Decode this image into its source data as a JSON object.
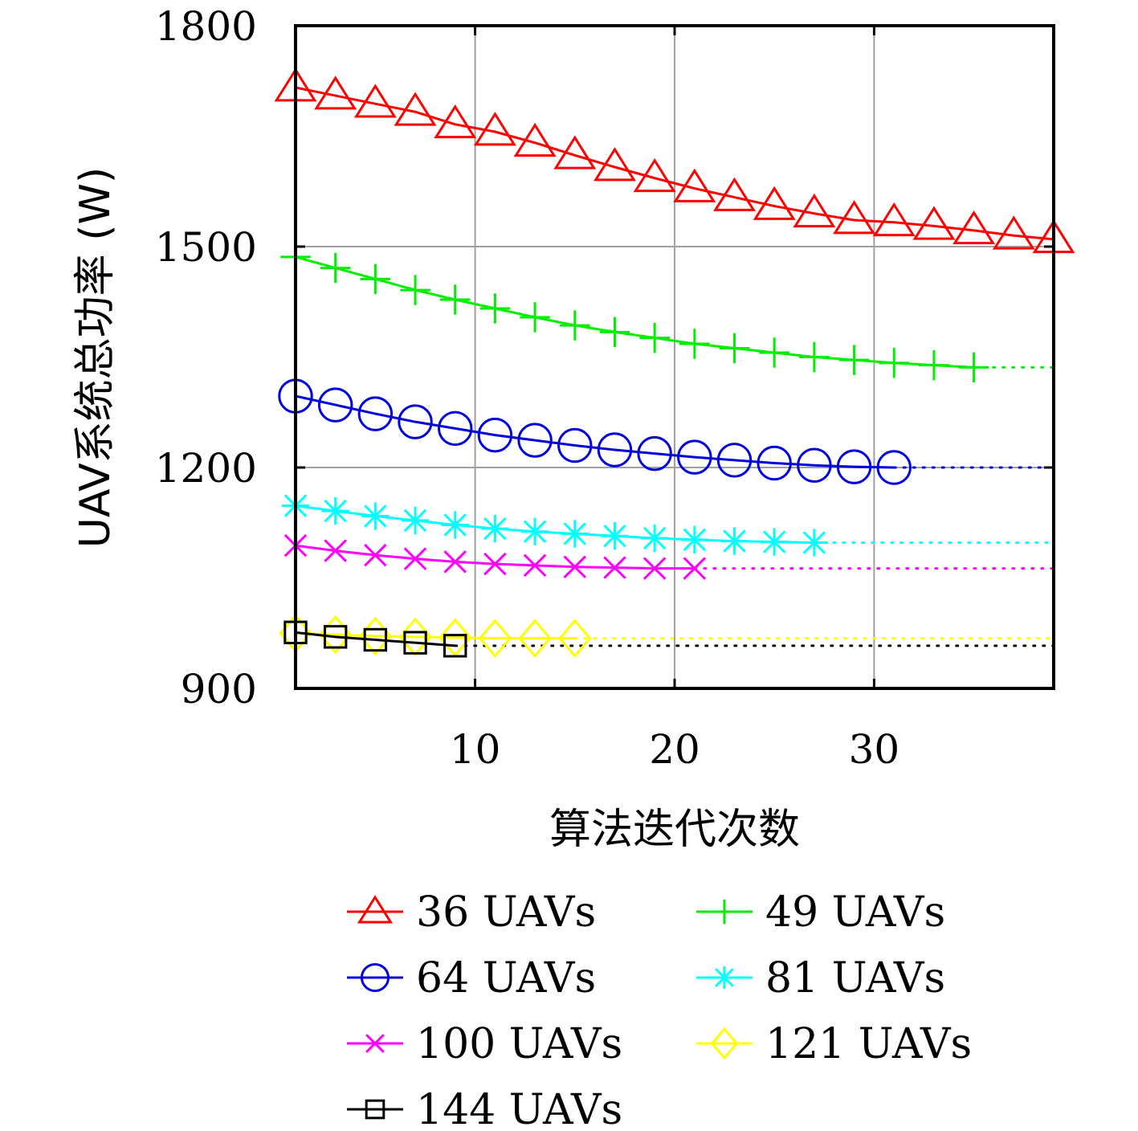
{
  "chart_data": {
    "type": "line",
    "title": "",
    "xlabel": "算法迭代次数",
    "ylabel": "UAV系统总功率 (W)",
    "xlim": [
      1,
      39
    ],
    "ylim": [
      900,
      1800
    ],
    "xticks": [
      10,
      20,
      30
    ],
    "yticks": [
      900,
      1200,
      1500,
      1800
    ],
    "xtick_labels": [
      "10",
      "20",
      "30"
    ],
    "ytick_labels": [
      "900",
      "1200",
      "1500",
      "1800"
    ],
    "grid": true,
    "legend_position": "bottom",
    "series": [
      {
        "name": "36 UAVs",
        "color": "#ff0000",
        "marker": "triangle",
        "x": [
          1,
          3,
          5,
          7,
          9,
          11,
          13,
          15,
          17,
          19,
          21,
          23,
          25,
          27,
          29,
          31,
          33,
          35,
          37,
          39
        ],
        "y": [
          1716,
          1705,
          1694,
          1683,
          1666,
          1656,
          1641,
          1624,
          1608,
          1593,
          1579,
          1567,
          1555,
          1545,
          1536,
          1533,
          1528,
          1522,
          1515,
          1510
        ]
      },
      {
        "name": "49 UAVs",
        "color": "#00ee00",
        "marker": "plus",
        "x": [
          1,
          3,
          5,
          7,
          9,
          11,
          13,
          15,
          17,
          19,
          21,
          23,
          25,
          27,
          29,
          31,
          33,
          35
        ],
        "y": [
          1486,
          1471,
          1456,
          1441,
          1428,
          1416,
          1404,
          1393,
          1384,
          1376,
          1368,
          1362,
          1356,
          1350,
          1346,
          1342,
          1339,
          1336
        ],
        "extended_to": 39,
        "extended_value": 1336
      },
      {
        "name": "64 UAVs",
        "color": "#0000dd",
        "marker": "circle",
        "x": [
          1,
          3,
          5,
          7,
          9,
          11,
          13,
          15,
          17,
          19,
          21,
          23,
          25,
          27,
          29,
          31
        ],
        "y": [
          1297,
          1285,
          1273,
          1262,
          1253,
          1244,
          1237,
          1230,
          1224,
          1219,
          1214,
          1210,
          1206,
          1203,
          1201,
          1200
        ],
        "extended_to": 39,
        "extended_value": 1200
      },
      {
        "name": "81 UAVs",
        "color": "#00ffff",
        "marker": "asterisk",
        "x": [
          1,
          3,
          5,
          7,
          9,
          11,
          13,
          15,
          17,
          19,
          21,
          23,
          25,
          27
        ],
        "y": [
          1148,
          1141,
          1134,
          1128,
          1122,
          1117,
          1113,
          1110,
          1107,
          1104,
          1102,
          1100,
          1099,
          1098
        ],
        "extended_to": 39,
        "extended_value": 1098
      },
      {
        "name": "100 UAVs",
        "color": "#ff00ff",
        "marker": "cross",
        "x": [
          1,
          3,
          5,
          7,
          9,
          11,
          13,
          15,
          17,
          19,
          21
        ],
        "y": [
          1094,
          1087,
          1081,
          1076,
          1072,
          1069,
          1067,
          1065,
          1064,
          1063,
          1063
        ],
        "extended_to": 39,
        "extended_value": 1063
      },
      {
        "name": "121 UAVs",
        "color": "#ffff00",
        "marker": "diamond",
        "x": [
          1,
          3,
          5,
          7,
          9,
          11,
          13,
          15
        ],
        "y": [
          975,
          973,
          971,
          970,
          969,
          968,
          968,
          968
        ],
        "extended_to": 39,
        "extended_value": 968
      },
      {
        "name": "144 UAVs",
        "color": "#000000",
        "marker": "square",
        "x": [
          1,
          3,
          5,
          7,
          9
        ],
        "y": [
          976,
          970,
          966,
          962,
          958
        ],
        "extended_to": 39,
        "extended_value": 958
      }
    ]
  }
}
